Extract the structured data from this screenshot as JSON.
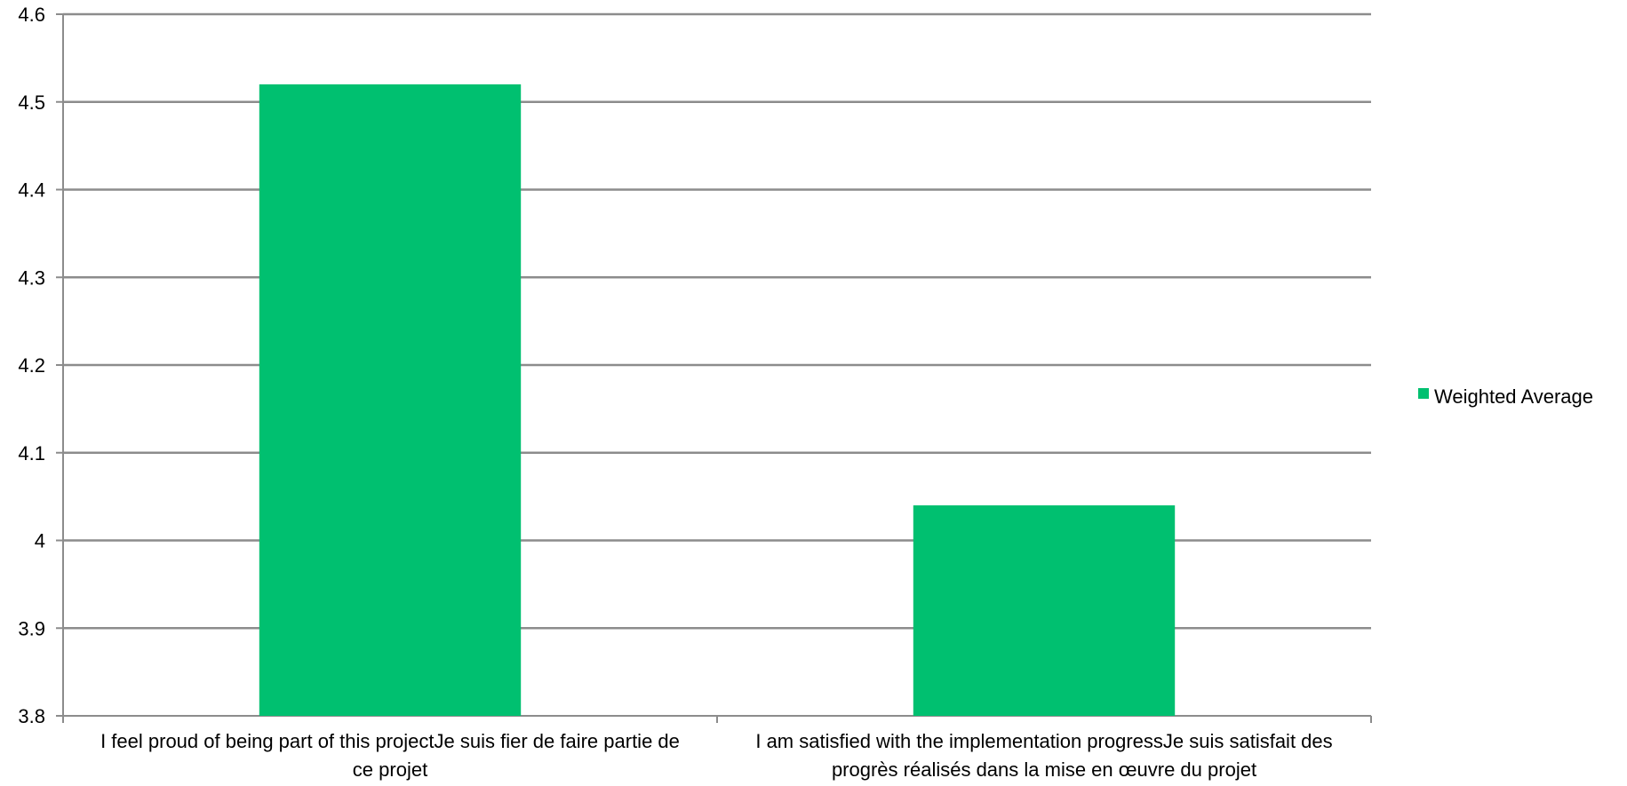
{
  "chart_data": {
    "type": "bar",
    "categories": [
      [
        "I feel proud of being part of this projectJe suis fier de faire partie de",
        "ce projet"
      ],
      [
        "I am satisfied with the implementation progressJe suis satisfait des",
        "progrès réalisés dans la mise en œuvre du projet"
      ]
    ],
    "series": [
      {
        "name": "Weighted Average",
        "values": [
          4.52,
          4.04
        ],
        "color": "#00C070"
      }
    ],
    "ylim": [
      3.8,
      4.6
    ],
    "yticks": [
      "3.8",
      "3.9",
      "4",
      "4.1",
      "4.2",
      "4.3",
      "4.4",
      "4.5",
      "4.6"
    ],
    "grid": true,
    "legend": "right",
    "gridColor": "#8c8c8c"
  }
}
